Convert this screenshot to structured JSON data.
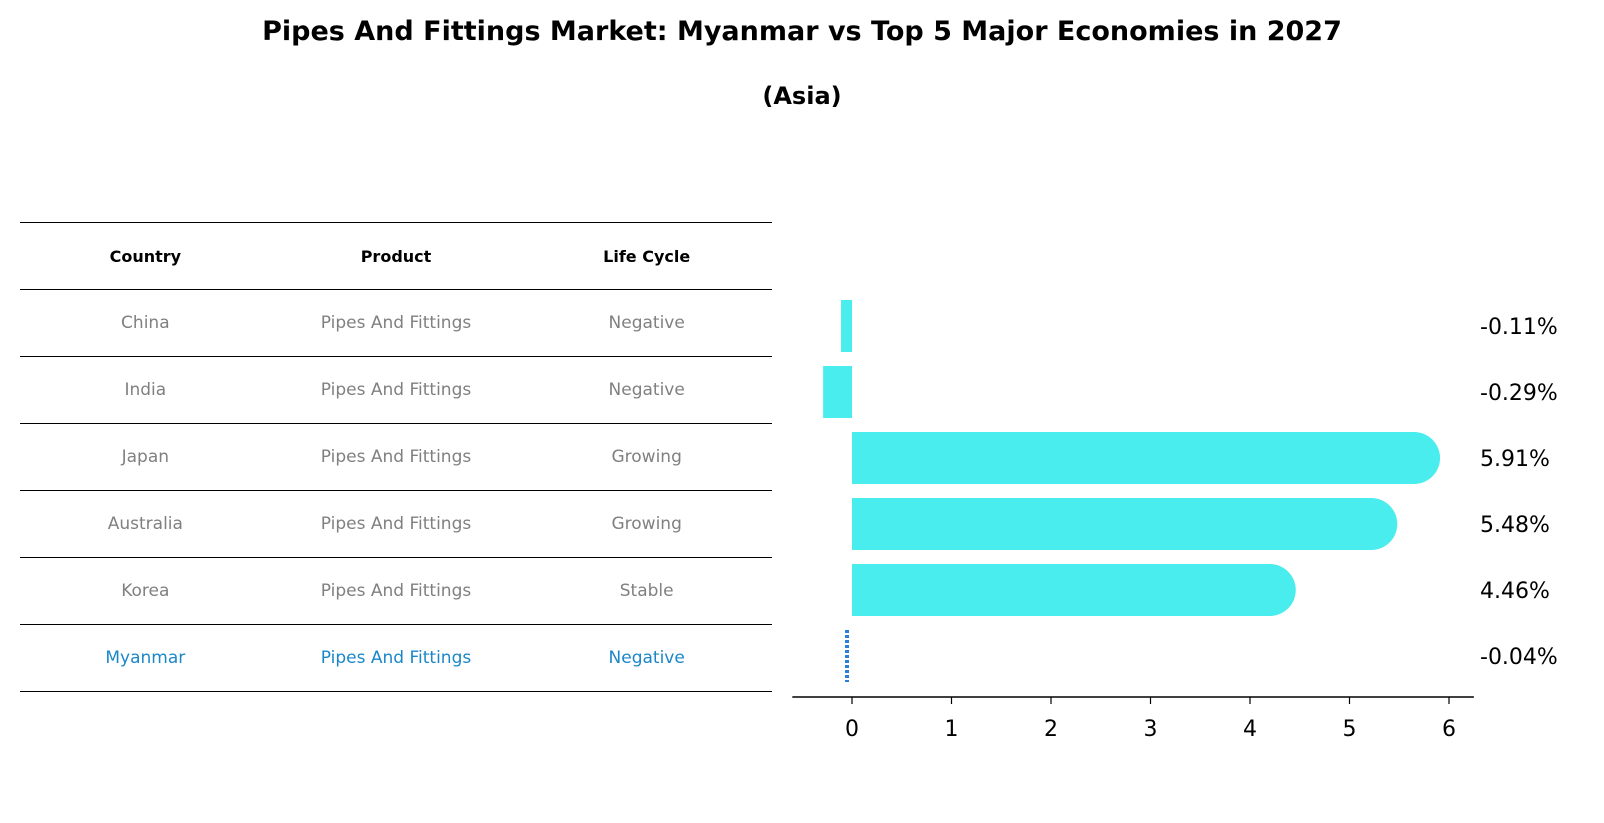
{
  "title": "Pipes And Fittings Market: Myanmar vs Top 5 Major Economies in 2027",
  "subtitle": "(Asia)",
  "table": {
    "headers": [
      "Country",
      "Product",
      "Life Cycle"
    ],
    "rows": [
      {
        "country": "China",
        "product": "Pipes And Fittings",
        "life_cycle": "Negative"
      },
      {
        "country": "India",
        "product": "Pipes And Fittings",
        "life_cycle": "Negative"
      },
      {
        "country": "Japan",
        "product": "Pipes And Fittings",
        "life_cycle": "Growing"
      },
      {
        "country": "Australia",
        "product": "Pipes And Fittings",
        "life_cycle": "Growing"
      },
      {
        "country": "Korea",
        "product": "Pipes And Fittings",
        "life_cycle": "Stable"
      },
      {
        "country": "Myanmar",
        "product": "Pipes And Fittings",
        "life_cycle": "Negative"
      }
    ]
  },
  "chart_data": {
    "type": "bar",
    "orientation": "horizontal",
    "categories": [
      "China",
      "India",
      "Japan",
      "Australia",
      "Korea",
      "Myanmar"
    ],
    "values": [
      -0.11,
      -0.29,
      5.91,
      5.48,
      4.46,
      -0.04
    ],
    "value_labels": [
      "-0.11%",
      "-0.29%",
      "5.91%",
      "5.48%",
      "4.46%",
      "-0.04%"
    ],
    "xticks": [
      "0",
      "1",
      "2",
      "3",
      "4",
      "5",
      "6"
    ],
    "xlim": [
      -0.6,
      6.25
    ],
    "colors": {
      "bar": "#4aeded",
      "highlight": "#2a7fd8"
    }
  }
}
